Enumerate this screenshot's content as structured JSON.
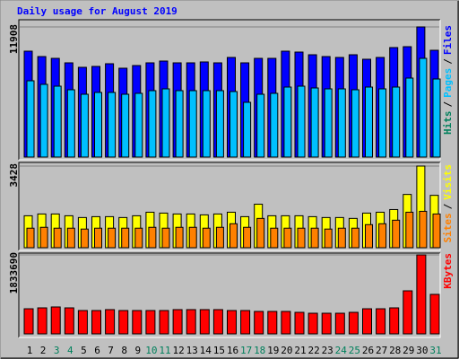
{
  "chart_data": [
    {
      "type": "bar",
      "title": "Daily usage for August 2019",
      "series": [
        {
          "name": "Files",
          "color": "#0000ff",
          "values": [
            9690,
            9197,
            9033,
            8623,
            8212,
            8294,
            8541,
            8130,
            8376,
            8623,
            8787,
            8623,
            8623,
            8705,
            8623,
            9115,
            8623,
            9033,
            9033,
            9690,
            9608,
            9362,
            9197,
            9115,
            9362,
            8951,
            9115,
            10019,
            10101,
            11908,
            9772
          ]
        },
        {
          "name": "Pages",
          "color": "#00c0ff",
          "values": [
            6980,
            6652,
            6487,
            6159,
            5748,
            5913,
            5913,
            5748,
            5831,
            6077,
            6241,
            6077,
            6077,
            6077,
            6077,
            5995,
            5009,
            5748,
            5831,
            6405,
            6487,
            6323,
            6241,
            6241,
            6159,
            6405,
            6241,
            6405,
            7227,
            9033,
            7144
          ]
        }
      ],
      "hits_label": "Hits",
      "hits_color": "#00805c",
      "legend_separator": "/",
      "ylim": [
        0,
        11908
      ],
      "yticks": [
        11908
      ]
    },
    {
      "type": "bar",
      "series": [
        {
          "name": "Visits",
          "color": "#ffff00",
          "values": [
            1341,
            1416,
            1416,
            1341,
            1267,
            1304,
            1304,
            1267,
            1341,
            1490,
            1453,
            1416,
            1416,
            1379,
            1416,
            1490,
            1304,
            1826,
            1341,
            1341,
            1341,
            1304,
            1267,
            1267,
            1230,
            1453,
            1490,
            1602,
            2236,
            3428,
            2198
          ]
        },
        {
          "name": "Sites",
          "color": "#ff8000",
          "values": [
            820,
            857,
            820,
            820,
            783,
            820,
            820,
            820,
            820,
            857,
            820,
            857,
            857,
            820,
            857,
            1006,
            857,
            1230,
            820,
            820,
            820,
            820,
            783,
            820,
            820,
            969,
            1006,
            1155,
            1490,
            1528,
            1416
          ]
        }
      ],
      "legend_separator": "/",
      "ylim": [
        0,
        3428
      ],
      "yticks": [
        3428
      ]
    },
    {
      "type": "bar",
      "categories": [
        "1",
        "2",
        "3",
        "4",
        "5",
        "6",
        "7",
        "8",
        "9",
        "10",
        "11",
        "12",
        "13",
        "14",
        "15",
        "16",
        "17",
        "18",
        "19",
        "20",
        "21",
        "22",
        "23",
        "24",
        "25",
        "26",
        "27",
        "28",
        "29",
        "30",
        "31"
      ],
      "category_colors": [
        "#000000",
        "#000000",
        "#00805c",
        "#00805c",
        "#000000",
        "#000000",
        "#000000",
        "#000000",
        "#000000",
        "#00805c",
        "#00805c",
        "#000000",
        "#000000",
        "#000000",
        "#000000",
        "#000000",
        "#00805c",
        "#00805c",
        "#000000",
        "#000000",
        "#000000",
        "#000000",
        "#000000",
        "#00805c",
        "#00805c",
        "#000000",
        "#000000",
        "#000000",
        "#000000",
        "#000000",
        "#00805c"
      ],
      "series": [
        {
          "name": "KBytes",
          "color": "#ff0000",
          "values": [
            583000,
            604000,
            625000,
            604000,
            542000,
            542000,
            563000,
            542000,
            542000,
            542000,
            542000,
            563000,
            563000,
            563000,
            563000,
            542000,
            542000,
            521000,
            521000,
            521000,
            500000,
            479000,
            479000,
            479000,
            500000,
            583000,
            583000,
            604000,
            1000000,
            1833690,
            917000
          ]
        }
      ],
      "ylim": [
        0,
        1833690
      ],
      "yticks": [
        1833690
      ]
    }
  ]
}
